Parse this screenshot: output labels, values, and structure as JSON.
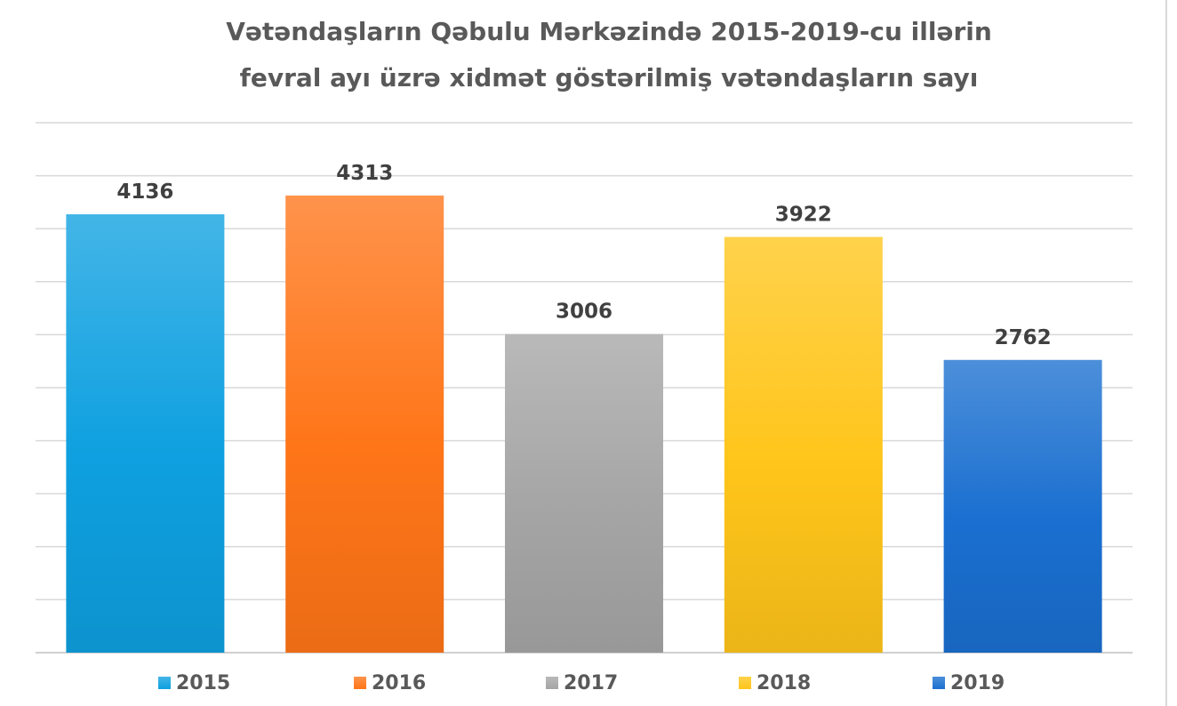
{
  "chart_data": {
    "type": "bar",
    "title": [
      "Vətəndaşların Qəbulu Mərkəzində 2015-2019-cu illərin",
      "fevral ayı üzrə xidmət göstərilmiş vətəndaşların sayı"
    ],
    "categories": [
      "2015",
      "2016",
      "2017",
      "2018",
      "2019"
    ],
    "values": [
      4136,
      4313,
      3006,
      3922,
      2762
    ],
    "colors": [
      "#0ea0e0",
      "#ff7518",
      "#a5a5a5",
      "#ffc51a",
      "#1a6fd0"
    ],
    "ylim": [
      0,
      5000
    ],
    "grid": true,
    "xlabel": "",
    "ylabel": "",
    "legend_position": "bottom",
    "data_labels": true
  }
}
